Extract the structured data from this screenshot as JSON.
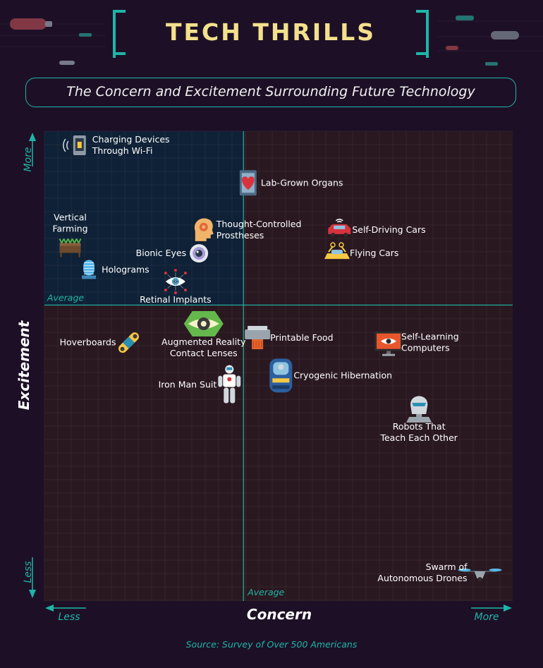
{
  "title": "TECH THRILLS",
  "subtitle": "The Concern and Excitement Surrounding Future Technology",
  "source": "Source: Survey of Over 500 Americans",
  "colors": {
    "background": "#1d1026",
    "accent": "#1eb5a8",
    "title": "#f3e08c",
    "upper_left_quadrant": "#0f2136",
    "other_quadrants": "#2a1820"
  },
  "chart_data": {
    "type": "scatter",
    "xlabel": "Concern",
    "ylabel": "Excitement",
    "x_axis_ends": [
      "Less",
      "More"
    ],
    "y_axis_ends": [
      "Less",
      "More"
    ],
    "average_label": "Average",
    "xlim": [
      0,
      100
    ],
    "ylim": [
      0,
      100
    ],
    "average": {
      "x": 42.5,
      "y": 63
    },
    "grid": true,
    "points": [
      {
        "label": "Charging Devices\nThrough Wi-Fi",
        "x": 7.5,
        "y": 97,
        "icon": "wifi-charging-phone-icon",
        "label_side": "right"
      },
      {
        "label": "Lab-Grown Organs",
        "x": 43.5,
        "y": 89,
        "icon": "heart-jar-icon",
        "label_side": "right"
      },
      {
        "label": "Thought-Controlled\nProstheses",
        "x": 34,
        "y": 79,
        "icon": "brain-gear-head-icon",
        "label_side": "right"
      },
      {
        "label": "Self-Driving Cars",
        "x": 63,
        "y": 79,
        "icon": "connected-car-icon",
        "label_side": "right"
      },
      {
        "label": "Flying Cars",
        "x": 62.5,
        "y": 74,
        "icon": "flying-car-icon",
        "label_side": "right"
      },
      {
        "label": "Vertical\nFarming",
        "x": 5.5,
        "y": 75,
        "icon": "planter-icon",
        "label_side": "above"
      },
      {
        "label": "Bionic Eyes",
        "x": 33,
        "y": 74,
        "icon": "eye-lens-icon",
        "label_side": "left"
      },
      {
        "label": "Holograms",
        "x": 9.5,
        "y": 70.5,
        "icon": "hologram-icon",
        "label_side": "right"
      },
      {
        "label": "Retinal Implants",
        "x": 28,
        "y": 68,
        "icon": "retina-circuit-icon",
        "label_side": "below"
      },
      {
        "label": "Hoverboards",
        "x": 18,
        "y": 55,
        "icon": "hoverboard-icon",
        "label_side": "left"
      },
      {
        "label": "Augmented Reality\nContact Lenses",
        "x": 34,
        "y": 59,
        "icon": "ar-lens-icon",
        "label_side": "below"
      },
      {
        "label": "Printable Food",
        "x": 45.5,
        "y": 56,
        "icon": "food-printer-icon",
        "label_side": "right"
      },
      {
        "label": "Self-Learning\nComputers",
        "x": 73.5,
        "y": 55,
        "icon": "monitor-eye-icon",
        "label_side": "right"
      },
      {
        "label": "Iron Man Suit",
        "x": 39.5,
        "y": 46,
        "icon": "robot-suit-icon",
        "label_side": "left"
      },
      {
        "label": "Cryogenic Hibernation",
        "x": 50.5,
        "y": 48,
        "icon": "cryo-pod-icon",
        "label_side": "right"
      },
      {
        "label": "Robots That\nTeach Each Other",
        "x": 80,
        "y": 41,
        "icon": "android-head-icon",
        "label_side": "below"
      },
      {
        "label": "Swarm of\nAutonomous Drones",
        "x": 93,
        "y": 6,
        "icon": "quadcopter-drone-icon",
        "label_side": "left"
      }
    ]
  }
}
